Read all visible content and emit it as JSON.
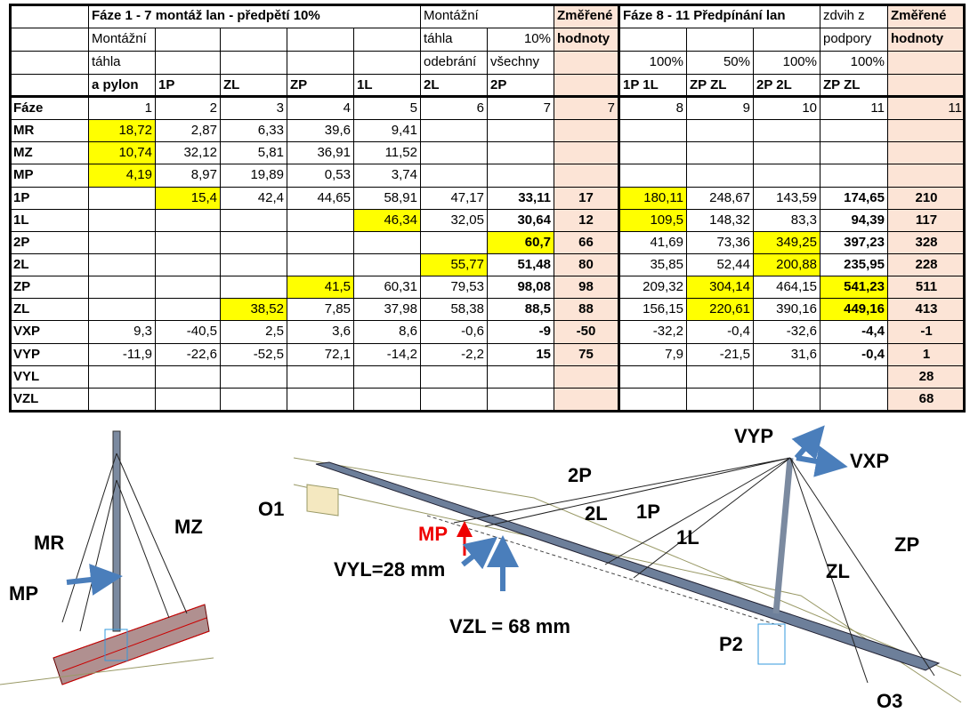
{
  "table": {
    "header": [
      [
        null,
        "Fáze 1 - 7 montáž lan -  předpětí 10%",
        null,
        null,
        null,
        null,
        "Montážní",
        null,
        "Změřené",
        "Fáze 8 - 11 Předpínání lan",
        null,
        null,
        "zdvih z",
        "Změřené"
      ],
      [
        null,
        "Montážní",
        null,
        null,
        null,
        null,
        "táhla",
        "10%",
        "hodnoty",
        null,
        null,
        null,
        "podpory",
        "hodnoty"
      ],
      [
        null,
        "táhla",
        null,
        null,
        null,
        null,
        "odebrání",
        "všechny",
        null,
        "100%",
        "50%",
        "100%",
        "100%",
        null
      ],
      [
        null,
        "a pylon",
        "1P",
        "ZL",
        "ZP",
        "1L",
        "2L",
        "2P",
        null,
        "1P 1L",
        "ZP ZL",
        "2P 2L",
        "ZP ZL",
        null
      ]
    ],
    "rows": [
      [
        "Fáze",
        "1",
        "2",
        "3",
        "4",
        "5",
        "6",
        "7",
        "7",
        "8",
        "9",
        "10",
        "11",
        "11"
      ],
      [
        "MR",
        "18,72",
        "2,87",
        "6,33",
        "39,6",
        "9,41",
        null,
        null,
        null,
        null,
        null,
        null,
        null,
        null
      ],
      [
        "MZ",
        "10,74",
        "32,12",
        "5,81",
        "36,91",
        "11,52",
        null,
        null,
        null,
        null,
        null,
        null,
        null,
        null
      ],
      [
        "MP",
        "4,19",
        "8,97",
        "19,89",
        "0,53",
        "3,74",
        null,
        null,
        null,
        null,
        null,
        null,
        null,
        null
      ],
      [
        "1P",
        null,
        "15,4",
        "42,4",
        "44,65",
        "58,91",
        "47,17",
        "33,11",
        "17",
        "180,11",
        "248,67",
        "143,59",
        "174,65",
        "210"
      ],
      [
        "1L",
        null,
        null,
        null,
        null,
        "46,34",
        "32,05",
        "30,64",
        "12",
        "109,5",
        "148,32",
        "83,3",
        "94,39",
        "117"
      ],
      [
        "2P",
        null,
        null,
        null,
        null,
        null,
        null,
        "60,7",
        "66",
        "41,69",
        "73,36",
        "349,25",
        "397,23",
        "328"
      ],
      [
        "2L",
        null,
        null,
        null,
        null,
        null,
        "55,77",
        "51,48",
        "80",
        "35,85",
        "52,44",
        "200,88",
        "235,95",
        "228"
      ],
      [
        "ZP",
        null,
        null,
        null,
        "41,5",
        "60,31",
        "79,53",
        "98,08",
        "98",
        "209,32",
        "304,14",
        "464,15",
        "541,23",
        "511"
      ],
      [
        "ZL",
        null,
        null,
        "38,52",
        "7,85",
        "37,98",
        "58,38",
        "88,5",
        "88",
        "156,15",
        "220,61",
        "390,16",
        "449,16",
        "413"
      ],
      [
        "VXP",
        "9,3",
        "-40,5",
        "2,5",
        "3,6",
        "8,6",
        "-0,6",
        "-9",
        "-50",
        "-32,2",
        "-0,4",
        "-32,6",
        "-4,4",
        "-1"
      ],
      [
        "VYP",
        "-11,9",
        "-22,6",
        "-52,5",
        "72,1",
        "-14,2",
        "-2,2",
        "15",
        "75",
        "7,9",
        "-21,5",
        "31,6",
        "-0,4",
        "1"
      ],
      [
        "VYL",
        null,
        null,
        null,
        null,
        null,
        null,
        null,
        null,
        null,
        null,
        null,
        null,
        "28"
      ],
      [
        "VZL",
        null,
        null,
        null,
        null,
        null,
        null,
        null,
        null,
        null,
        null,
        null,
        null,
        "68"
      ]
    ]
  },
  "diagram": {
    "labels": [
      "MR",
      "MZ",
      "MP",
      "O1",
      "2P",
      "2L",
      "1P",
      "1L",
      "VYP",
      "VXP",
      "MP",
      "VYL=28 mm",
      "VZL = 68 mm",
      "ZL",
      "ZP",
      "P2",
      "O3"
    ]
  }
}
